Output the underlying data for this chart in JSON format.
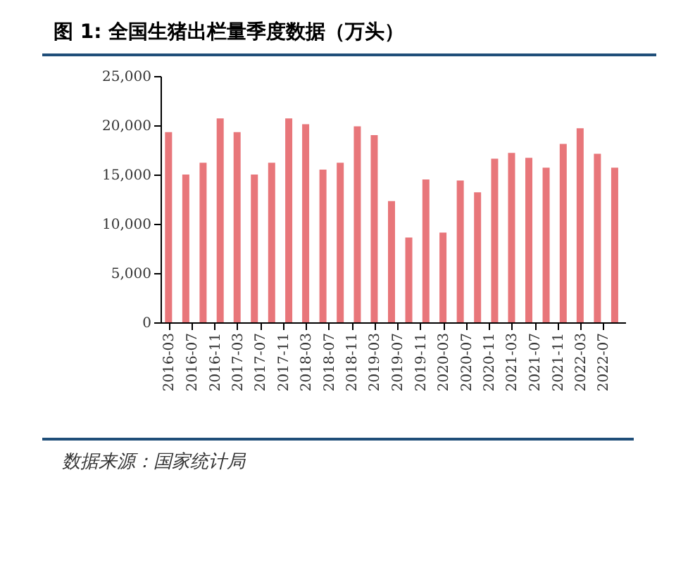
{
  "chart_data": {
    "type": "bar",
    "title": "图 1: 全国生猪出栏量季度数据（万头）",
    "x": [
      "2016-03",
      "2016-06",
      "2016-09",
      "2016-12",
      "2017-03",
      "2017-06",
      "2017-09",
      "2017-12",
      "2018-03",
      "2018-06",
      "2018-09",
      "2018-12",
      "2019-03",
      "2019-06",
      "2019-09",
      "2019-12",
      "2020-03",
      "2020-06",
      "2020-09",
      "2020-12",
      "2021-03",
      "2021-06",
      "2021-09",
      "2021-12",
      "2022-03",
      "2022-06",
      "2022-09"
    ],
    "values": [
      19300,
      15000,
      16200,
      20700,
      19300,
      15000,
      16200,
      20700,
      20100,
      15500,
      16200,
      19900,
      19000,
      12300,
      8600,
      14500,
      9100,
      14400,
      13200,
      16600,
      17200,
      16700,
      15700,
      18100,
      19700,
      17100,
      15700
    ],
    "color": "#e8767a",
    "xlim": [
      "2016-02-25",
      "2022-09-20"
    ],
    "xticks": [
      "2016-03",
      "2016-07",
      "2016-11",
      "2017-03",
      "2017-07",
      "2017-11",
      "2018-03",
      "2018-07",
      "2018-11",
      "2019-03",
      "2019-07",
      "2019-11",
      "2020-03",
      "2020-07",
      "2020-11",
      "2021-03",
      "2021-07",
      "2021-11",
      "2022-03",
      "2022-07"
    ],
    "ylim": [
      0,
      25000
    ],
    "yticks": [
      0,
      {
        "value": 5000,
        "label": "5,000"
      },
      {
        "value": 10000,
        "label": "10,000"
      },
      {
        "value": 15000,
        "label": "15,000"
      },
      {
        "value": 20000,
        "label": "20,000"
      },
      {
        "value": 25000,
        "label": "25,000"
      }
    ],
    "grid": false,
    "annotations": [
      "数据来源：国家统计局"
    ]
  }
}
